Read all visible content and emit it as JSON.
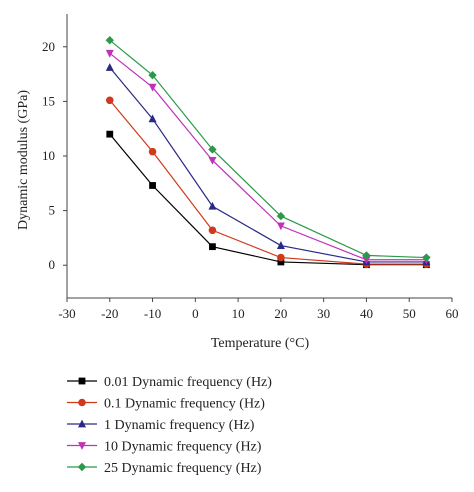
{
  "chart_data": {
    "type": "line",
    "xlabel": "Temperature (°C)",
    "ylabel": "Dynamic modulus (GPa)",
    "xlim": [
      -30,
      60
    ],
    "ylim": [
      -3,
      23
    ],
    "xticks": [
      -30,
      -20,
      -10,
      0,
      10,
      20,
      30,
      40,
      50,
      60
    ],
    "yticks": [
      0,
      5,
      10,
      15,
      20
    ],
    "x": [
      -20,
      -10,
      4,
      20,
      40,
      54
    ],
    "grid": false,
    "legend_position": "bottom-left, below plot",
    "series": [
      {
        "name": "0.01 Dynamic frequency (Hz)",
        "color": "#000000",
        "marker": "square",
        "values": [
          12.0,
          7.3,
          1.7,
          0.3,
          0.05,
          0.05
        ]
      },
      {
        "name": "0.1 Dynamic frequency (Hz)",
        "color": "#d03a1c",
        "marker": "circle",
        "values": [
          15.1,
          10.4,
          3.2,
          0.7,
          0.1,
          0.1
        ]
      },
      {
        "name": "1 Dynamic frequency (Hz)",
        "color": "#2a2a86",
        "marker": "triangle-up",
        "values": [
          18.1,
          13.4,
          5.4,
          1.8,
          0.3,
          0.3
        ]
      },
      {
        "name": "10 Dynamic frequency (Hz)",
        "color": "#c032b8",
        "marker": "triangle-down",
        "values": [
          19.4,
          16.3,
          9.6,
          3.6,
          0.5,
          0.5
        ]
      },
      {
        "name": "25 Dynamic frequency (Hz)",
        "color": "#2a9a4a",
        "marker": "diamond",
        "values": [
          20.6,
          17.4,
          10.6,
          4.5,
          0.9,
          0.7
        ]
      }
    ]
  }
}
